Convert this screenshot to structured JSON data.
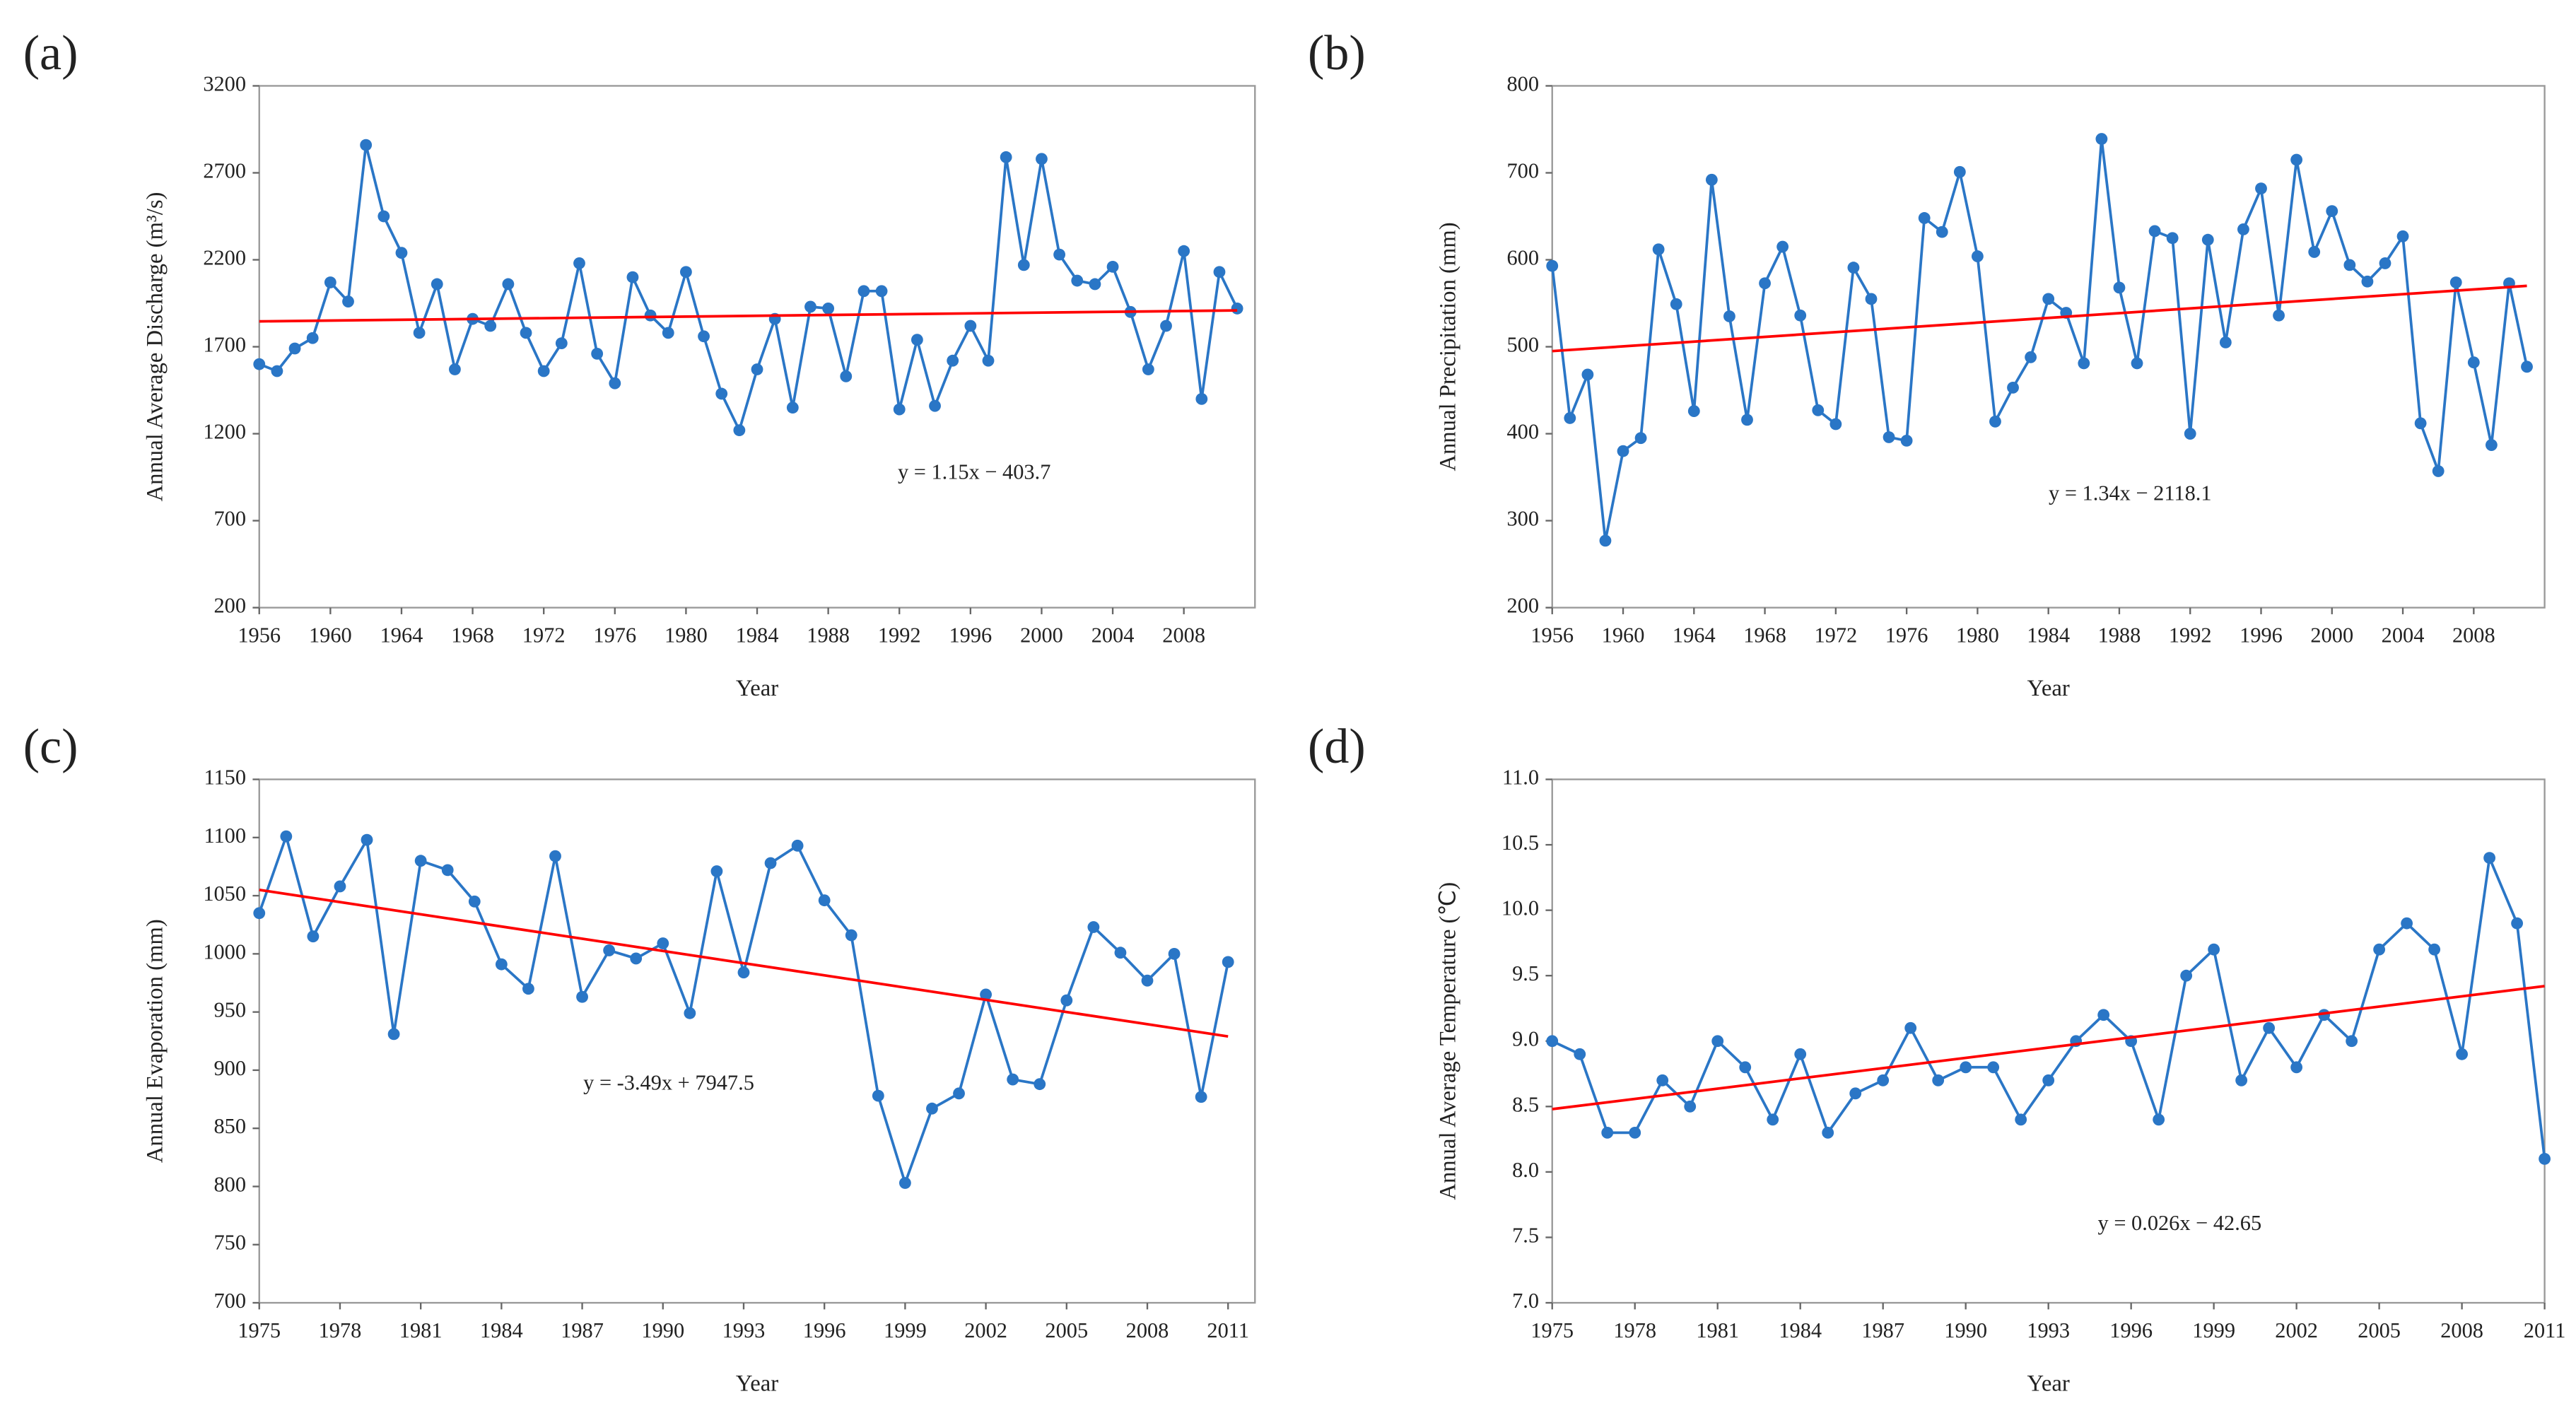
{
  "chart_data": [
    {
      "type": "line",
      "panel_label": "(a)",
      "x_label": "Year",
      "y_label": "Annual Average Discharge (m³/s)",
      "annotation": "y = 1.15x − 403.7",
      "x": [
        1956,
        1957,
        1958,
        1959,
        1960,
        1961,
        1962,
        1963,
        1964,
        1965,
        1966,
        1967,
        1968,
        1969,
        1970,
        1971,
        1972,
        1973,
        1974,
        1975,
        1976,
        1977,
        1978,
        1979,
        1980,
        1981,
        1982,
        1983,
        1984,
        1985,
        1986,
        1987,
        1988,
        1989,
        1990,
        1991,
        1992,
        1993,
        1994,
        1995,
        1996,
        1997,
        1998,
        1999,
        2000,
        2001,
        2002,
        2003,
        2004,
        2005,
        2006,
        2007,
        2008,
        2009,
        2010,
        2011
      ],
      "series": [
        {
          "color": "#2a76c6",
          "values": [
            1600,
            1560,
            1690,
            1750,
            2070,
            1960,
            2860,
            2450,
            2240,
            1780,
            2060,
            1570,
            1860,
            1820,
            2060,
            1780,
            1560,
            1720,
            2180,
            1660,
            1490,
            2100,
            1880,
            1780,
            2130,
            1760,
            1430,
            1220,
            1570,
            1860,
            1350,
            1930,
            1920,
            1530,
            2020,
            2020,
            1340,
            1740,
            1360,
            1620,
            1820,
            1620,
            2790,
            2170,
            2780,
            2230,
            2080,
            2060,
            2160,
            1900,
            1570,
            1820,
            2250,
            1400,
            2130,
            1920
          ]
        }
      ],
      "trend": {
        "color": "#ff0000",
        "x": [
          1956,
          2011
        ],
        "values": [
          1846,
          1909
        ]
      },
      "xlim": [
        1956,
        2012
      ],
      "xticks": [
        1956,
        1960,
        1964,
        1968,
        1972,
        1976,
        1980,
        1984,
        1988,
        1992,
        1996,
        2000,
        2004,
        2008
      ],
      "ylim": [
        200,
        3200
      ],
      "yticks": [
        200,
        700,
        1200,
        1700,
        2200,
        2700,
        3200
      ]
    },
    {
      "type": "line",
      "panel_label": "(b)",
      "x_label": "Year",
      "y_label": "Annual Precipitation (mm)",
      "annotation": "y = 1.34x − 2118.1",
      "x": [
        1956,
        1957,
        1958,
        1959,
        1960,
        1961,
        1962,
        1963,
        1964,
        1965,
        1966,
        1967,
        1968,
        1969,
        1970,
        1971,
        1972,
        1973,
        1974,
        1975,
        1976,
        1977,
        1978,
        1979,
        1980,
        1981,
        1982,
        1983,
        1984,
        1985,
        1986,
        1987,
        1988,
        1989,
        1990,
        1991,
        1992,
        1993,
        1994,
        1995,
        1996,
        1997,
        1998,
        1999,
        2000,
        2001,
        2002,
        2003,
        2004,
        2005,
        2006,
        2007,
        2008,
        2009,
        2010,
        2011
      ],
      "series": [
        {
          "color": "#2a76c6",
          "values": [
            593,
            418,
            468,
            277,
            380,
            395,
            612,
            549,
            426,
            692,
            535,
            416,
            573,
            615,
            536,
            427,
            411,
            591,
            555,
            396,
            392,
            648,
            632,
            701,
            604,
            414,
            453,
            488,
            555,
            539,
            481,
            739,
            568,
            481,
            633,
            625,
            400,
            623,
            505,
            635,
            682,
            536,
            715,
            609,
            656,
            594,
            575,
            596,
            627,
            412,
            357,
            574,
            482,
            387,
            573,
            477
          ]
        }
      ],
      "trend": {
        "color": "#ff0000",
        "x": [
          1956,
          2011
        ],
        "values": [
          495,
          570
        ]
      },
      "xlim": [
        1956,
        2012
      ],
      "xticks": [
        1956,
        1960,
        1964,
        1968,
        1972,
        1976,
        1980,
        1984,
        1988,
        1992,
        1996,
        2000,
        2004,
        2008
      ],
      "ylim": [
        200,
        800
      ],
      "yticks": [
        200,
        300,
        400,
        500,
        600,
        700,
        800
      ]
    },
    {
      "type": "line",
      "panel_label": "(c)",
      "x_label": "Year",
      "y_label": "Annual  Evaporation (mm)",
      "annotation": "y = -3.49x + 7947.5",
      "x": [
        1975,
        1976,
        1977,
        1978,
        1979,
        1980,
        1981,
        1982,
        1983,
        1984,
        1985,
        1986,
        1987,
        1988,
        1989,
        1990,
        1991,
        1992,
        1993,
        1994,
        1995,
        1996,
        1997,
        1998,
        1999,
        2000,
        2001,
        2002,
        2003,
        2004,
        2005,
        2006,
        2007,
        2008,
        2009,
        2010,
        2011
      ],
      "series": [
        {
          "color": "#2a76c6",
          "values": [
            1035,
            1101,
            1015,
            1058,
            1098,
            931,
            1080,
            1072,
            1045,
            991,
            970,
            1084,
            963,
            1003,
            996,
            1009,
            949,
            1071,
            984,
            1078,
            1093,
            1046,
            1016,
            878,
            803,
            867,
            880,
            965,
            892,
            888,
            960,
            1023,
            1001,
            977,
            1000,
            877,
            993
          ]
        }
      ],
      "trend": {
        "color": "#ff0000",
        "x": [
          1975,
          2011
        ],
        "values": [
          1055,
          929
        ]
      },
      "xlim": [
        1975,
        2012
      ],
      "xticks": [
        1975,
        1978,
        1981,
        1984,
        1987,
        1990,
        1993,
        1996,
        1999,
        2002,
        2005,
        2008,
        2011
      ],
      "ylim": [
        700,
        1150
      ],
      "yticks": [
        700,
        750,
        800,
        850,
        900,
        950,
        1000,
        1050,
        1100,
        1150
      ]
    },
    {
      "type": "line",
      "panel_label": "(d)",
      "x_label": "Year",
      "y_label": "Annual Average Temperature (℃)",
      "annotation": "y = 0.026x − 42.65",
      "x": [
        1975,
        1976,
        1977,
        1978,
        1979,
        1980,
        1981,
        1982,
        1983,
        1984,
        1985,
        1986,
        1987,
        1988,
        1989,
        1990,
        1991,
        1992,
        1993,
        1994,
        1995,
        1996,
        1997,
        1998,
        1999,
        2000,
        2001,
        2002,
        2003,
        2004,
        2005,
        2006,
        2007,
        2008,
        2009,
        2010,
        2011
      ],
      "series": [
        {
          "color": "#2a76c6",
          "values": [
            9.0,
            8.9,
            8.3,
            8.3,
            8.7,
            8.5,
            9.0,
            8.8,
            8.4,
            8.9,
            8.3,
            8.6,
            8.7,
            9.1,
            8.7,
            8.8,
            8.8,
            8.4,
            8.7,
            9.0,
            9.2,
            9.0,
            8.4,
            9.5,
            9.7,
            8.7,
            9.1,
            8.8,
            9.2,
            9.0,
            9.7,
            9.9,
            9.7,
            8.9,
            10.4,
            9.9,
            8.1
          ]
        }
      ],
      "trend": {
        "color": "#ff0000",
        "x": [
          1975,
          2011
        ],
        "values": [
          8.48,
          9.42
        ]
      },
      "xlim": [
        1975,
        2011
      ],
      "xticks": [
        1975,
        1978,
        1981,
        1984,
        1987,
        1990,
        1993,
        1996,
        1999,
        2002,
        2005,
        2008,
        2011
      ],
      "ylim": [
        7,
        11
      ],
      "yticks": [
        {
          "value": 7,
          "label": "7.0"
        },
        7.5,
        {
          "value": 8,
          "label": "8.0"
        },
        8.5,
        {
          "value": 9,
          "label": "9.0"
        },
        9.5,
        {
          "value": 10,
          "label": "10.0"
        },
        10.5,
        {
          "value": 11,
          "label": "11.0"
        }
      ]
    }
  ]
}
